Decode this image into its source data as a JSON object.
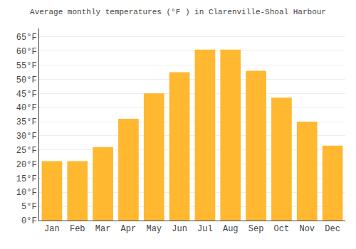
{
  "chart_data": {
    "type": "bar",
    "title": "Average monthly temperatures (°F ) in Clarenville-Shoal Harbour",
    "categories": [
      "Jan",
      "Feb",
      "Mar",
      "Apr",
      "May",
      "Jun",
      "Jul",
      "Aug",
      "Sep",
      "Oct",
      "Nov",
      "Dec"
    ],
    "values": [
      21,
      21,
      26,
      36,
      45,
      52.5,
      60.5,
      60.5,
      53,
      43.5,
      35,
      26.5
    ],
    "color": "#FFB830",
    "ylim": [
      0,
      68
    ],
    "yticks": [
      {
        "value": 0,
        "label": "0°F"
      },
      {
        "value": 5,
        "label": "5°F"
      },
      {
        "value": 10,
        "label": "10°F"
      },
      {
        "value": 15,
        "label": "15°F"
      },
      {
        "value": 20,
        "label": "20°F"
      },
      {
        "value": 25,
        "label": "25°F"
      },
      {
        "value": 30,
        "label": "30°F"
      },
      {
        "value": 35,
        "label": "35°F"
      },
      {
        "value": 40,
        "label": "40°F"
      },
      {
        "value": 45,
        "label": "45°F"
      },
      {
        "value": 50,
        "label": "50°F"
      },
      {
        "value": 55,
        "label": "55°F"
      },
      {
        "value": 60,
        "label": "60°F"
      },
      {
        "value": 65,
        "label": "65°F"
      }
    ],
    "grid": true
  }
}
